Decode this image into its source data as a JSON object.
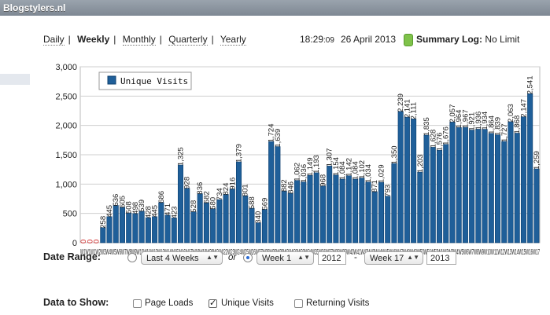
{
  "window": {
    "title": "Blogstylers.nl"
  },
  "periods": [
    {
      "label": "Daily",
      "active": false
    },
    {
      "label": "Weekly",
      "active": true
    },
    {
      "label": "Monthly",
      "active": false
    },
    {
      "label": "Quarterly",
      "active": false
    },
    {
      "label": "Yearly",
      "active": false
    }
  ],
  "status": {
    "time": "18:29",
    "seconds": ":09",
    "date": "26 April 2013",
    "summary_label": "Summary Log:",
    "summary_value": "No Limit"
  },
  "colors": {
    "bar": "#1f5f99",
    "bar_edge": "#0d3f6e",
    "zero_label": "#cc2222"
  },
  "chart_data": {
    "type": "bar",
    "title": "",
    "xlabel": "",
    "ylabel": "",
    "ylim": [
      0,
      3000
    ],
    "y_ticks": [
      "0",
      "500",
      "1,000",
      "1,500",
      "2,000",
      "2,500",
      "3,000"
    ],
    "y_tick_values": [
      0,
      500,
      1000,
      1500,
      2000,
      2500,
      3000
    ],
    "grid": true,
    "legend_position": "top-left",
    "series": [
      {
        "name": "Unique Visits",
        "values": [
          0,
          0,
          0,
          258,
          445,
          636,
          605,
          508,
          498,
          539,
          428,
          445,
          686,
          471,
          423,
          1325,
          928,
          528,
          836,
          682,
          580,
          734,
          824,
          916,
          1379,
          801,
          588,
          340,
          569,
          1724,
          1639,
          882,
          846,
          1062,
          1036,
          1149,
          1193,
          968,
          1307,
          1154,
          1084,
          1142,
          1084,
          1102,
          1034,
          871,
          1029,
          793,
          1350,
          2239,
          2141,
          2111,
          1203,
          1835,
          1628,
          1576,
          1676,
          2057,
          1964,
          1967,
          1921,
          1936,
          1934,
          1864,
          1839,
          1727,
          2063,
          1868,
          2147,
          2541,
          1259
        ],
        "labels": [
          "0",
          "0",
          "0",
          "258",
          "445",
          "636",
          "605",
          "508",
          "498",
          "539",
          "428",
          "445",
          "686",
          "471",
          "423",
          "1,325",
          "928",
          "528",
          "836",
          "682",
          "580",
          "734",
          "824",
          "916",
          "1,379",
          "801",
          "588",
          "340",
          "569",
          "1,724",
          "1,639",
          "882",
          "846",
          "1,062",
          "1,036",
          "1,149",
          "1,193",
          "968",
          "1,307",
          "1,154",
          "1,084",
          "1,142",
          "1,084",
          "1,102",
          "1,034",
          "871",
          "1,029",
          "793",
          "1,350",
          "2,239",
          "2,141",
          "2,111",
          "1,203",
          "1,835",
          "1,628",
          "1,576",
          "1,676",
          "2,057",
          "1,964",
          "1,967",
          "1,921",
          "1,936",
          "1,934",
          "1,864",
          "1,839",
          "1,727",
          "2,063",
          "1,868",
          "2,147",
          "2,541",
          "1,259"
        ]
      }
    ],
    "x_tick_text": "W1W1W1W2W3W4W5W6W7W8W9W10W11W12W13W14W15W16W17W18W19W20W21W22W23W24W25W26W27W28W29W30W31W32W33W34W35W36W37W38W39W40W41W42W43W44W45W46W47W48W49W50W51W52W1W2W3W4W5W6W7W8W9W10W11W12W13W14W15W16W17"
  },
  "form": {
    "date_range_label": "Date Range:",
    "preset_value": "Last 4 Weeks",
    "or_label": "or",
    "from_week": "Week 1",
    "from_year": "2012",
    "dash": "-",
    "to_week": "Week 17",
    "to_year": "2013",
    "data_label": "Data to Show:",
    "options": [
      {
        "label": "Page Loads",
        "checked": false
      },
      {
        "label": "Unique Visits",
        "checked": true
      },
      {
        "label": "Returning Visits",
        "checked": false
      }
    ]
  }
}
